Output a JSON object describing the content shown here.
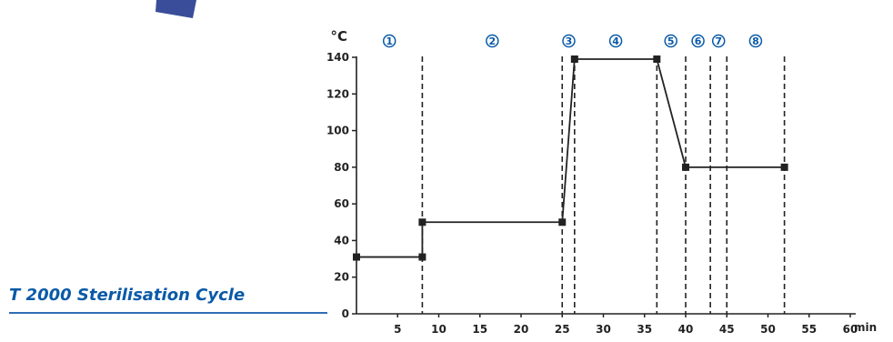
{
  "caption": {
    "text": "T 2000 Sterilisation Cycle",
    "color": "#0a5aa8"
  },
  "logo": {
    "color": "#3a4d9a"
  },
  "chart_data": {
    "type": "line",
    "title": "",
    "xlabel": "min",
    "ylabel": "°C",
    "xlim": [
      0,
      60
    ],
    "ylim": [
      0,
      140
    ],
    "x_ticks": [
      {
        "value": 5,
        "label": "5"
      },
      {
        "value": 10,
        "label": "10"
      },
      {
        "value": 15,
        "label": "15"
      },
      {
        "value": 20,
        "label": "20"
      },
      {
        "value": 25,
        "label": "25"
      },
      {
        "value": 30,
        "label": "30"
      },
      {
        "value": 35,
        "label": "35"
      },
      {
        "value": 40,
        "label": "40"
      },
      {
        "value": 45,
        "label": "45"
      },
      {
        "value": 50,
        "label": "50"
      },
      {
        "value": 55,
        "label": "55"
      },
      {
        "value": 60,
        "label": "60"
      }
    ],
    "y_ticks": [
      {
        "value": 0,
        "label": "0"
      },
      {
        "value": 20,
        "label": "20"
      },
      {
        "value": 40,
        "label": "40"
      },
      {
        "value": 60,
        "label": "60"
      },
      {
        "value": 80,
        "label": "80"
      },
      {
        "value": 100,
        "label": "100"
      },
      {
        "value": 120,
        "label": "120"
      },
      {
        "value": 140,
        "label": "140"
      }
    ],
    "series": [
      {
        "points": [
          {
            "x": 0,
            "y": 31
          },
          {
            "x": 8,
            "y": 31
          },
          {
            "x": 8,
            "y": 50
          },
          {
            "x": 25,
            "y": 50
          },
          {
            "x": 26.5,
            "y": 139
          },
          {
            "x": 36.5,
            "y": 139
          },
          {
            "x": 40,
            "y": 80
          },
          {
            "x": 52,
            "y": 80
          }
        ],
        "color": "#222222"
      }
    ],
    "phase_boundaries": [
      8,
      25,
      26.5,
      36.5,
      40,
      43,
      45,
      52
    ],
    "phase_markers": [
      {
        "label": "1",
        "x": 4
      },
      {
        "label": "2",
        "x": 16.5
      },
      {
        "label": "3",
        "x": 25.8
      },
      {
        "label": "4",
        "x": 31.5
      },
      {
        "label": "5",
        "x": 38.2
      },
      {
        "label": "6",
        "x": 41.5
      },
      {
        "label": "7",
        "x": 44
      },
      {
        "label": "8",
        "x": 48.5
      }
    ],
    "grid": false,
    "legend": "none",
    "marker_color": "#0a5aa8"
  }
}
